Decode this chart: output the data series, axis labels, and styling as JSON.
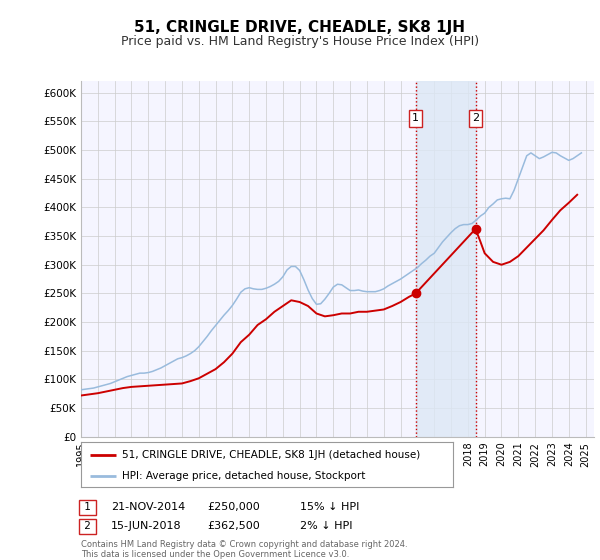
{
  "title": "51, CRINGLE DRIVE, CHEADLE, SK8 1JH",
  "subtitle": "Price paid vs. HM Land Registry's House Price Index (HPI)",
  "title_fontsize": 11,
  "subtitle_fontsize": 9,
  "xlim": [
    1995.0,
    2025.5
  ],
  "ylim": [
    0,
    620000
  ],
  "yticks": [
    0,
    50000,
    100000,
    150000,
    200000,
    250000,
    300000,
    350000,
    400000,
    450000,
    500000,
    550000,
    600000
  ],
  "ytick_labels": [
    "£0",
    "£50K",
    "£100K",
    "£150K",
    "£200K",
    "£250K",
    "£300K",
    "£350K",
    "£400K",
    "£450K",
    "£500K",
    "£550K",
    "£600K"
  ],
  "xticks": [
    1995,
    1996,
    1997,
    1998,
    1999,
    2000,
    2001,
    2002,
    2003,
    2004,
    2005,
    2006,
    2007,
    2008,
    2009,
    2010,
    2011,
    2012,
    2013,
    2014,
    2015,
    2016,
    2017,
    2018,
    2019,
    2020,
    2021,
    2022,
    2023,
    2024,
    2025
  ],
  "background_color": "#ffffff",
  "plot_bg_color": "#f5f5ff",
  "grid_color": "#cccccc",
  "red_color": "#cc0000",
  "blue_color": "#99bbdd",
  "shade_color": "#dde8f5",
  "sale1_x": 2014.896,
  "sale1_y": 250000,
  "sale1_label": "1",
  "sale1_date": "21-NOV-2014",
  "sale1_price": "£250,000",
  "sale1_hpi": "15% ↓ HPI",
  "sale2_x": 2018.458,
  "sale2_y": 362500,
  "sale2_label": "2",
  "sale2_date": "15-JUN-2018",
  "sale2_price": "£362,500",
  "sale2_hpi": "2% ↓ HPI",
  "legend_line1": "51, CRINGLE DRIVE, CHEADLE, SK8 1JH (detached house)",
  "legend_line2": "HPI: Average price, detached house, Stockport",
  "footer_line1": "Contains HM Land Registry data © Crown copyright and database right 2024.",
  "footer_line2": "This data is licensed under the Open Government Licence v3.0.",
  "hpi_data_x": [
    1995.0,
    1995.25,
    1995.5,
    1995.75,
    1996.0,
    1996.25,
    1996.5,
    1996.75,
    1997.0,
    1997.25,
    1997.5,
    1997.75,
    1998.0,
    1998.25,
    1998.5,
    1998.75,
    1999.0,
    1999.25,
    1999.5,
    1999.75,
    2000.0,
    2000.25,
    2000.5,
    2000.75,
    2001.0,
    2001.25,
    2001.5,
    2001.75,
    2002.0,
    2002.25,
    2002.5,
    2002.75,
    2003.0,
    2003.25,
    2003.5,
    2003.75,
    2004.0,
    2004.25,
    2004.5,
    2004.75,
    2005.0,
    2005.25,
    2005.5,
    2005.75,
    2006.0,
    2006.25,
    2006.5,
    2006.75,
    2007.0,
    2007.25,
    2007.5,
    2007.75,
    2008.0,
    2008.25,
    2008.5,
    2008.75,
    2009.0,
    2009.25,
    2009.5,
    2009.75,
    2010.0,
    2010.25,
    2010.5,
    2010.75,
    2011.0,
    2011.25,
    2011.5,
    2011.75,
    2012.0,
    2012.25,
    2012.5,
    2012.75,
    2013.0,
    2013.25,
    2013.5,
    2013.75,
    2014.0,
    2014.25,
    2014.5,
    2014.75,
    2015.0,
    2015.25,
    2015.5,
    2015.75,
    2016.0,
    2016.25,
    2016.5,
    2016.75,
    2017.0,
    2017.25,
    2017.5,
    2017.75,
    2018.0,
    2018.25,
    2018.5,
    2018.75,
    2019.0,
    2019.25,
    2019.5,
    2019.75,
    2020.0,
    2020.25,
    2020.5,
    2020.75,
    2021.0,
    2021.25,
    2021.5,
    2021.75,
    2022.0,
    2022.25,
    2022.5,
    2022.75,
    2023.0,
    2023.25,
    2023.5,
    2023.75,
    2024.0,
    2024.25,
    2024.5,
    2024.75
  ],
  "hpi_data_y": [
    82000,
    83000,
    84000,
    85000,
    87000,
    89000,
    91000,
    93000,
    96000,
    99000,
    102000,
    105000,
    107000,
    109000,
    111000,
    111000,
    112000,
    114000,
    117000,
    120000,
    124000,
    128000,
    132000,
    136000,
    138000,
    141000,
    145000,
    150000,
    157000,
    166000,
    175000,
    185000,
    194000,
    203000,
    212000,
    220000,
    229000,
    240000,
    252000,
    258000,
    260000,
    258000,
    257000,
    257000,
    259000,
    262000,
    266000,
    271000,
    279000,
    291000,
    297000,
    297000,
    290000,
    274000,
    256000,
    241000,
    231000,
    232000,
    240000,
    250000,
    261000,
    266000,
    265000,
    260000,
    255000,
    255000,
    256000,
    254000,
    253000,
    253000,
    253000,
    255000,
    258000,
    263000,
    267000,
    271000,
    275000,
    280000,
    285000,
    290000,
    295000,
    302000,
    308000,
    315000,
    320000,
    330000,
    340000,
    348000,
    356000,
    363000,
    368000,
    370000,
    370000,
    372000,
    378000,
    385000,
    390000,
    400000,
    406000,
    413000,
    415000,
    416000,
    415000,
    430000,
    450000,
    470000,
    490000,
    495000,
    490000,
    485000,
    488000,
    492000,
    496000,
    495000,
    490000,
    486000,
    482000,
    485000,
    490000,
    495000
  ],
  "price_data_x": [
    1995.0,
    1995.5,
    1996.0,
    1996.5,
    1997.0,
    1997.5,
    1998.0,
    1998.5,
    1999.0,
    1999.5,
    2000.0,
    2000.5,
    2001.0,
    2001.5,
    2002.0,
    2002.5,
    2003.0,
    2003.5,
    2004.0,
    2004.5,
    2005.0,
    2005.5,
    2006.0,
    2006.5,
    2007.0,
    2007.5,
    2008.0,
    2008.5,
    2009.0,
    2009.5,
    2010.0,
    2010.5,
    2011.0,
    2011.5,
    2012.0,
    2012.5,
    2013.0,
    2013.5,
    2014.0,
    2014.5,
    2014.896,
    2018.458,
    2018.75,
    2019.0,
    2019.5,
    2020.0,
    2020.5,
    2021.0,
    2021.5,
    2022.0,
    2022.5,
    2023.0,
    2023.5,
    2024.0,
    2024.5
  ],
  "price_data_y": [
    72000,
    74000,
    76000,
    79000,
    82000,
    85000,
    87000,
    88000,
    89000,
    90000,
    91000,
    92000,
    93000,
    97000,
    102000,
    110000,
    118000,
    130000,
    145000,
    165000,
    178000,
    195000,
    205000,
    218000,
    228000,
    238000,
    235000,
    228000,
    215000,
    210000,
    212000,
    215000,
    215000,
    218000,
    218000,
    220000,
    222000,
    228000,
    235000,
    244000,
    250000,
    362500,
    340000,
    320000,
    305000,
    300000,
    305000,
    315000,
    330000,
    345000,
    360000,
    378000,
    395000,
    408000,
    422000
  ]
}
